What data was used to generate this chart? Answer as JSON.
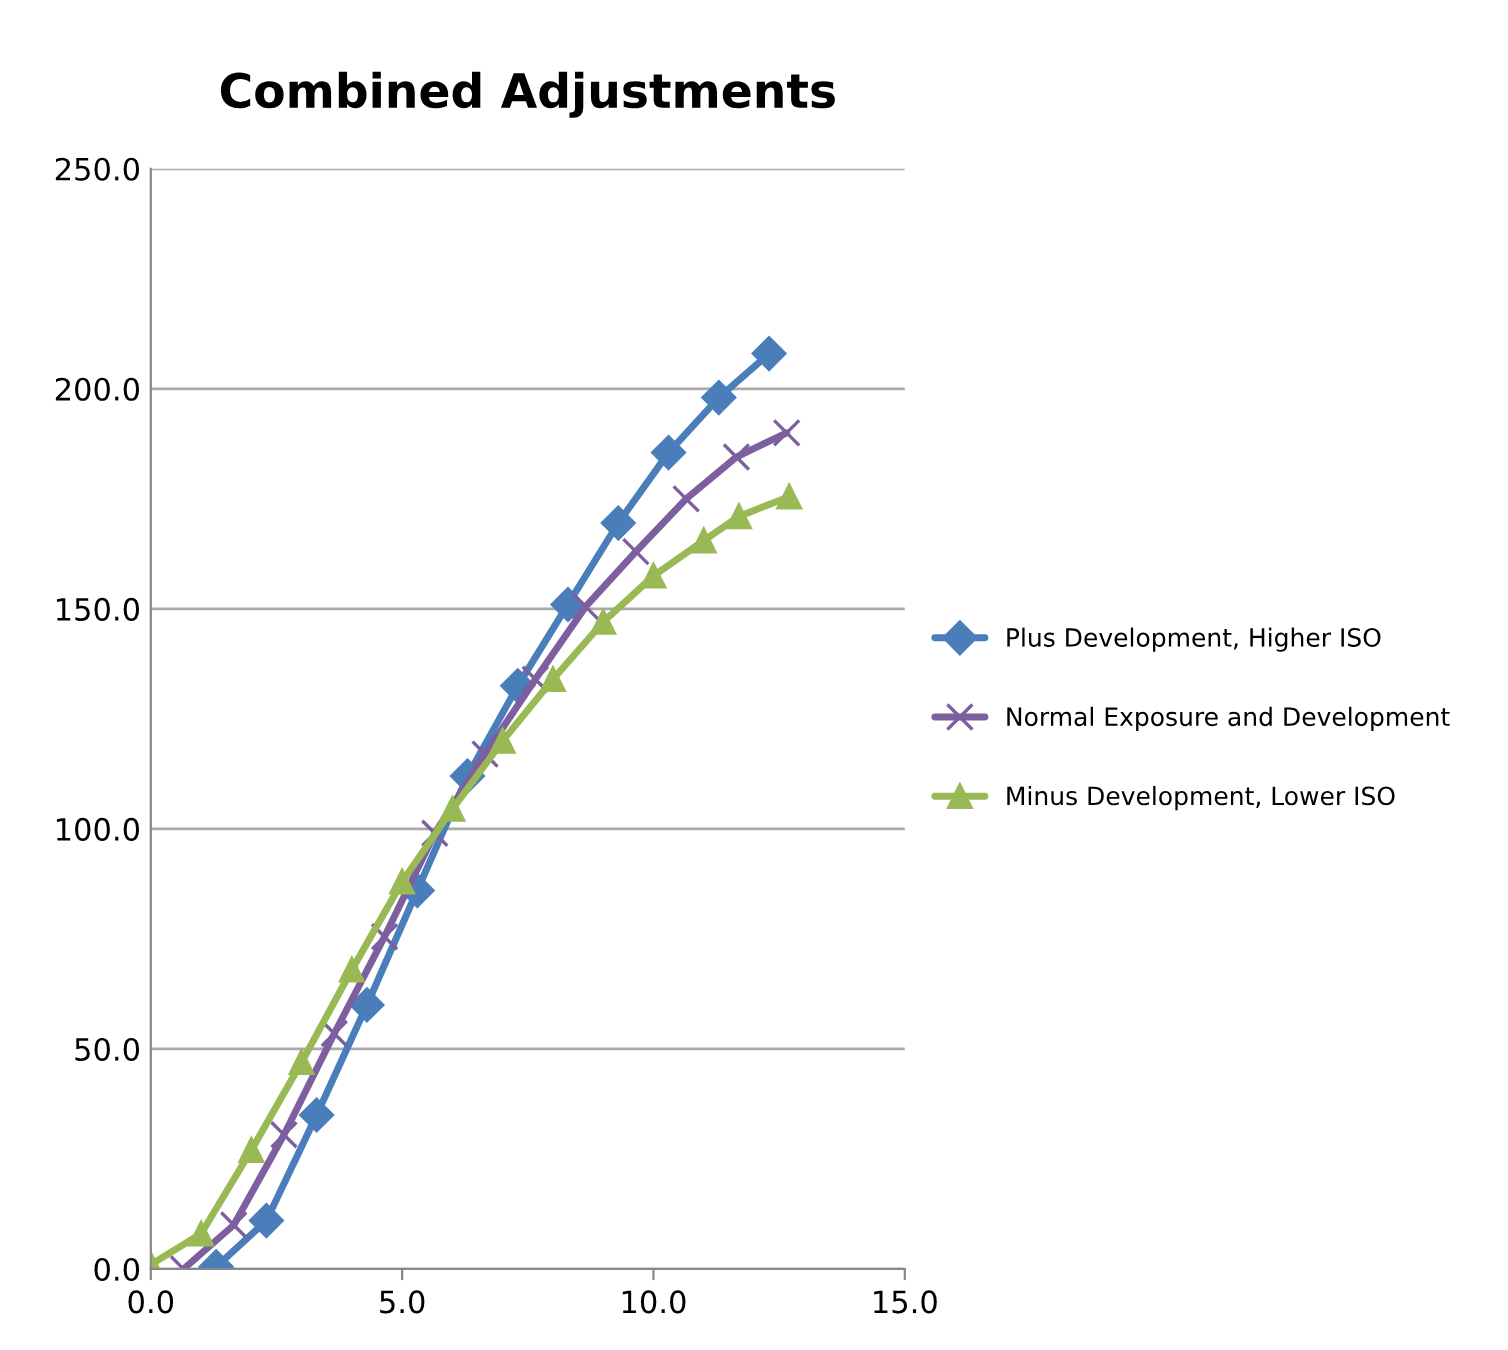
{
  "chart_data": {
    "type": "line",
    "title": "Combined Adjustments",
    "xlim": [
      0,
      15
    ],
    "xticks": [
      {
        "value": 0,
        "label": "0.0"
      },
      {
        "value": 5,
        "label": "5.0"
      },
      {
        "value": 10,
        "label": "10.0"
      },
      {
        "value": 15,
        "label": "15.0"
      }
    ],
    "ylim": [
      0,
      250
    ],
    "yticks": [
      {
        "value": 0,
        "label": "0.0"
      },
      {
        "value": 50,
        "label": "50.0"
      },
      {
        "value": 100,
        "label": "100.0"
      },
      {
        "value": 150,
        "label": "150.0"
      },
      {
        "value": 200,
        "label": "200.0"
      },
      {
        "value": 250,
        "label": "250.0"
      }
    ],
    "grid": "y",
    "legend": "right",
    "line_style": "solid",
    "series": [
      {
        "name": "Plus Development, Higher ISO",
        "color": "#4a7ebb",
        "marker": "diamond",
        "x": [
          1.3,
          2.3,
          3.3,
          4.3,
          5.3,
          6.3,
          7.3,
          8.3,
          9.3,
          10.3,
          11.3,
          12.3
        ],
        "values": [
          0.5,
          11,
          35,
          60,
          86,
          112,
          132.5,
          151,
          169.5,
          185.5,
          198,
          208
        ]
      },
      {
        "name": "Normal Exposure and Development",
        "color": "#7d5fa0",
        "marker": "cross",
        "x": [
          0.65,
          1.65,
          2.65,
          3.65,
          4.65,
          5.65,
          6.65,
          7.65,
          8.65,
          9.65,
          10.65,
          11.65,
          12.65
        ],
        "values": [
          0,
          10,
          30.5,
          53.5,
          75.5,
          99,
          117,
          134,
          150.5,
          163,
          175,
          184.5,
          190
        ]
      },
      {
        "name": "Minus Development, Lower ISO",
        "color": "#98b954",
        "marker": "triangle",
        "x": [
          0,
          1,
          2,
          3,
          4,
          5,
          6,
          7,
          8,
          9,
          10,
          11,
          11.7,
          12.7
        ],
        "values": [
          1,
          8,
          27,
          47,
          68,
          88,
          104.5,
          120,
          134,
          147,
          157.5,
          165.5,
          171,
          175.5
        ]
      }
    ]
  }
}
